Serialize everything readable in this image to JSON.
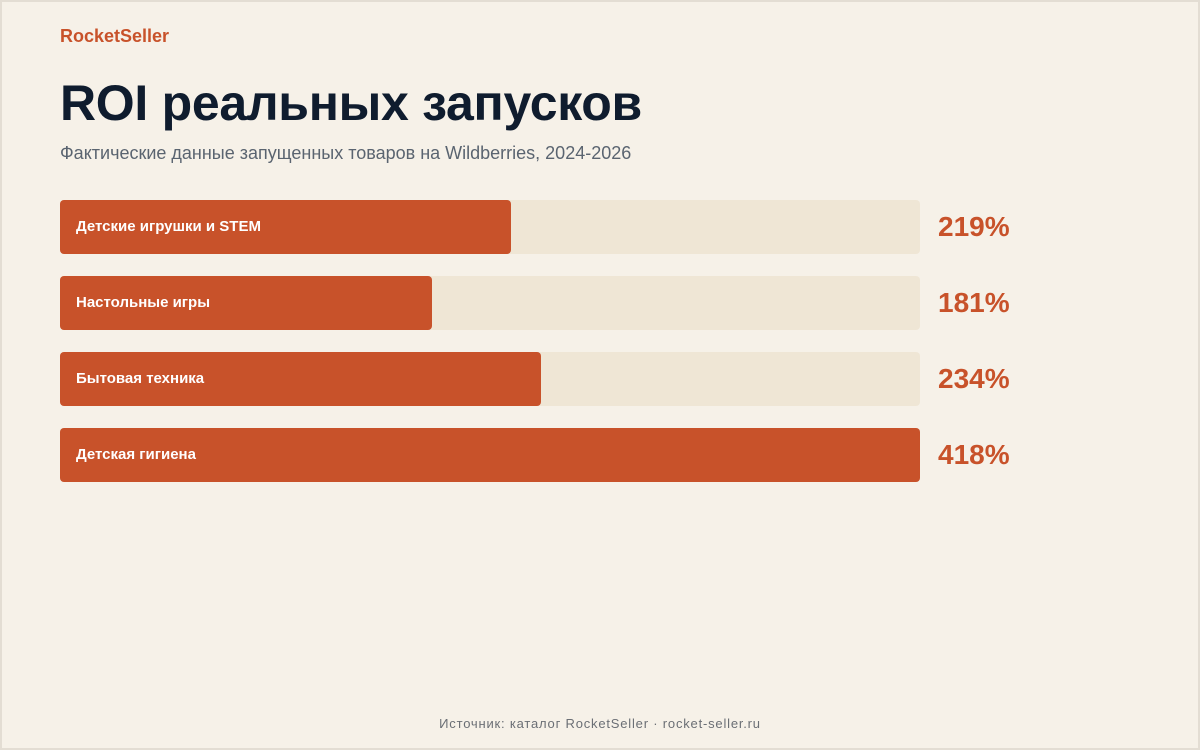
{
  "brand": "RocketSeller",
  "title": "ROI реальных запусков",
  "subtitle": "Фактические данные запущенных товаров на Wildberries, 2024-2026",
  "footer": "Источник: каталог RocketSeller · rocket-seller.ru",
  "colors": {
    "accent": "#c8522a",
    "track": "#efe6d5",
    "background": "#f6f1e8",
    "title": "#0f1c2e"
  },
  "chart_data": {
    "type": "bar",
    "orientation": "horizontal",
    "categories": [
      "Детские игрушки и STEM",
      "Настольные игры",
      "Бытовая техника",
      "Детская гигиена"
    ],
    "values": [
      219,
      181,
      234,
      418
    ],
    "value_labels": [
      "219%",
      "181%",
      "234%",
      "418%"
    ],
    "unit": "%",
    "xlim": [
      0,
      418
    ],
    "grid": false,
    "legend": "none"
  }
}
